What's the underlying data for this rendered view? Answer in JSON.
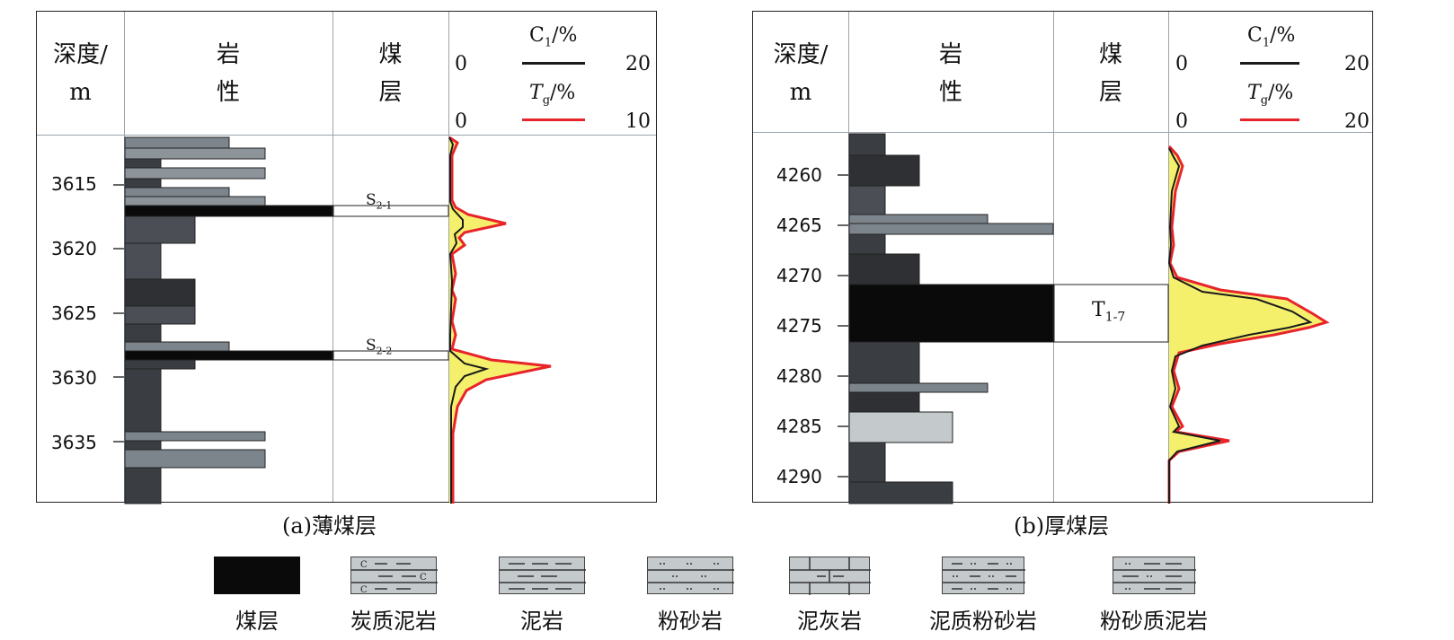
{
  "header": {
    "depth_line1": "深度/",
    "depth_line2": "m",
    "lithology_line1": "岩",
    "lithology_line2": "性",
    "coal_line1": "煤",
    "coal_line2": "层"
  },
  "panel_a": {
    "caption": "(a)薄煤层",
    "c1_label": "C",
    "c1_sub": "1",
    "c1_unit": "/%",
    "c1_min": "0",
    "c1_max": "20",
    "tg_label": "T",
    "tg_sub": "g",
    "tg_unit": "/%",
    "tg_min": "0",
    "tg_max": "10",
    "depth_ticks": [
      "3615",
      "3620",
      "3625",
      "3630",
      "3635"
    ],
    "seams": [
      {
        "label": "S",
        "sub": "2-1"
      },
      {
        "label": "S",
        "sub": "2-2"
      }
    ]
  },
  "panel_b": {
    "caption": "(b)厚煤层",
    "c1_label": "C",
    "c1_sub": "1",
    "c1_unit": "/%",
    "c1_min": "0",
    "c1_max": "20",
    "tg_label": "T",
    "tg_sub": "g",
    "tg_unit": "/%",
    "tg_min": "0",
    "tg_max": "20",
    "depth_ticks": [
      "4260",
      "4265",
      "4270",
      "4275",
      "4280",
      "4285",
      "4290"
    ],
    "seams": [
      {
        "label": "T",
        "sub": "1-7"
      }
    ]
  },
  "legend": [
    {
      "label": "煤层",
      "icon": "coal-pattern"
    },
    {
      "label": "炭质泥岩",
      "icon": "carbonaceous-mudstone-pattern"
    },
    {
      "label": "泥岩",
      "icon": "mudstone-pattern"
    },
    {
      "label": "粉砂岩",
      "icon": "siltstone-pattern"
    },
    {
      "label": "泥灰岩",
      "icon": "marl-pattern"
    },
    {
      "label": "泥质粉砂岩",
      "icon": "argillaceous-siltstone-pattern"
    },
    {
      "label": "粉砂质泥岩",
      "icon": "silty-mudstone-pattern"
    }
  ],
  "colors": {
    "c1_line": "#1a1a1a",
    "tg_line": "#e8242b",
    "gas_fill": "#f5f06c",
    "coal": "#0a0a0a",
    "dark_rock": "#3a3d42",
    "mid_rock": "#7d858c",
    "light_rock": "#c4c9cc"
  }
}
